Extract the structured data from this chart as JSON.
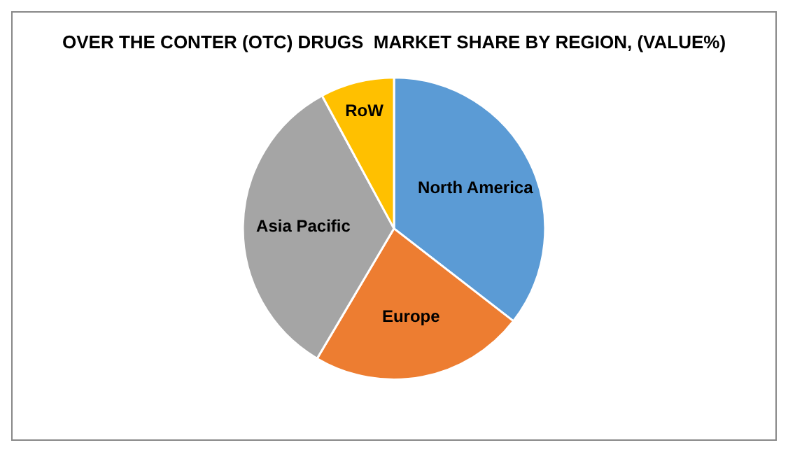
{
  "chart_data": {
    "type": "pie",
    "title": "OVER THE CONTER (OTC) DRUGS  MARKET SHARE BY REGION, (VALUE%)",
    "categories": [
      "North America",
      "Europe",
      "Asia Pacific",
      "RoW"
    ],
    "values": [
      35.5,
      23,
      33.6,
      7.9
    ],
    "colors": [
      "#5b9bd5",
      "#ed7d31",
      "#a5a5a5",
      "#ffc000"
    ],
    "legend": false
  }
}
